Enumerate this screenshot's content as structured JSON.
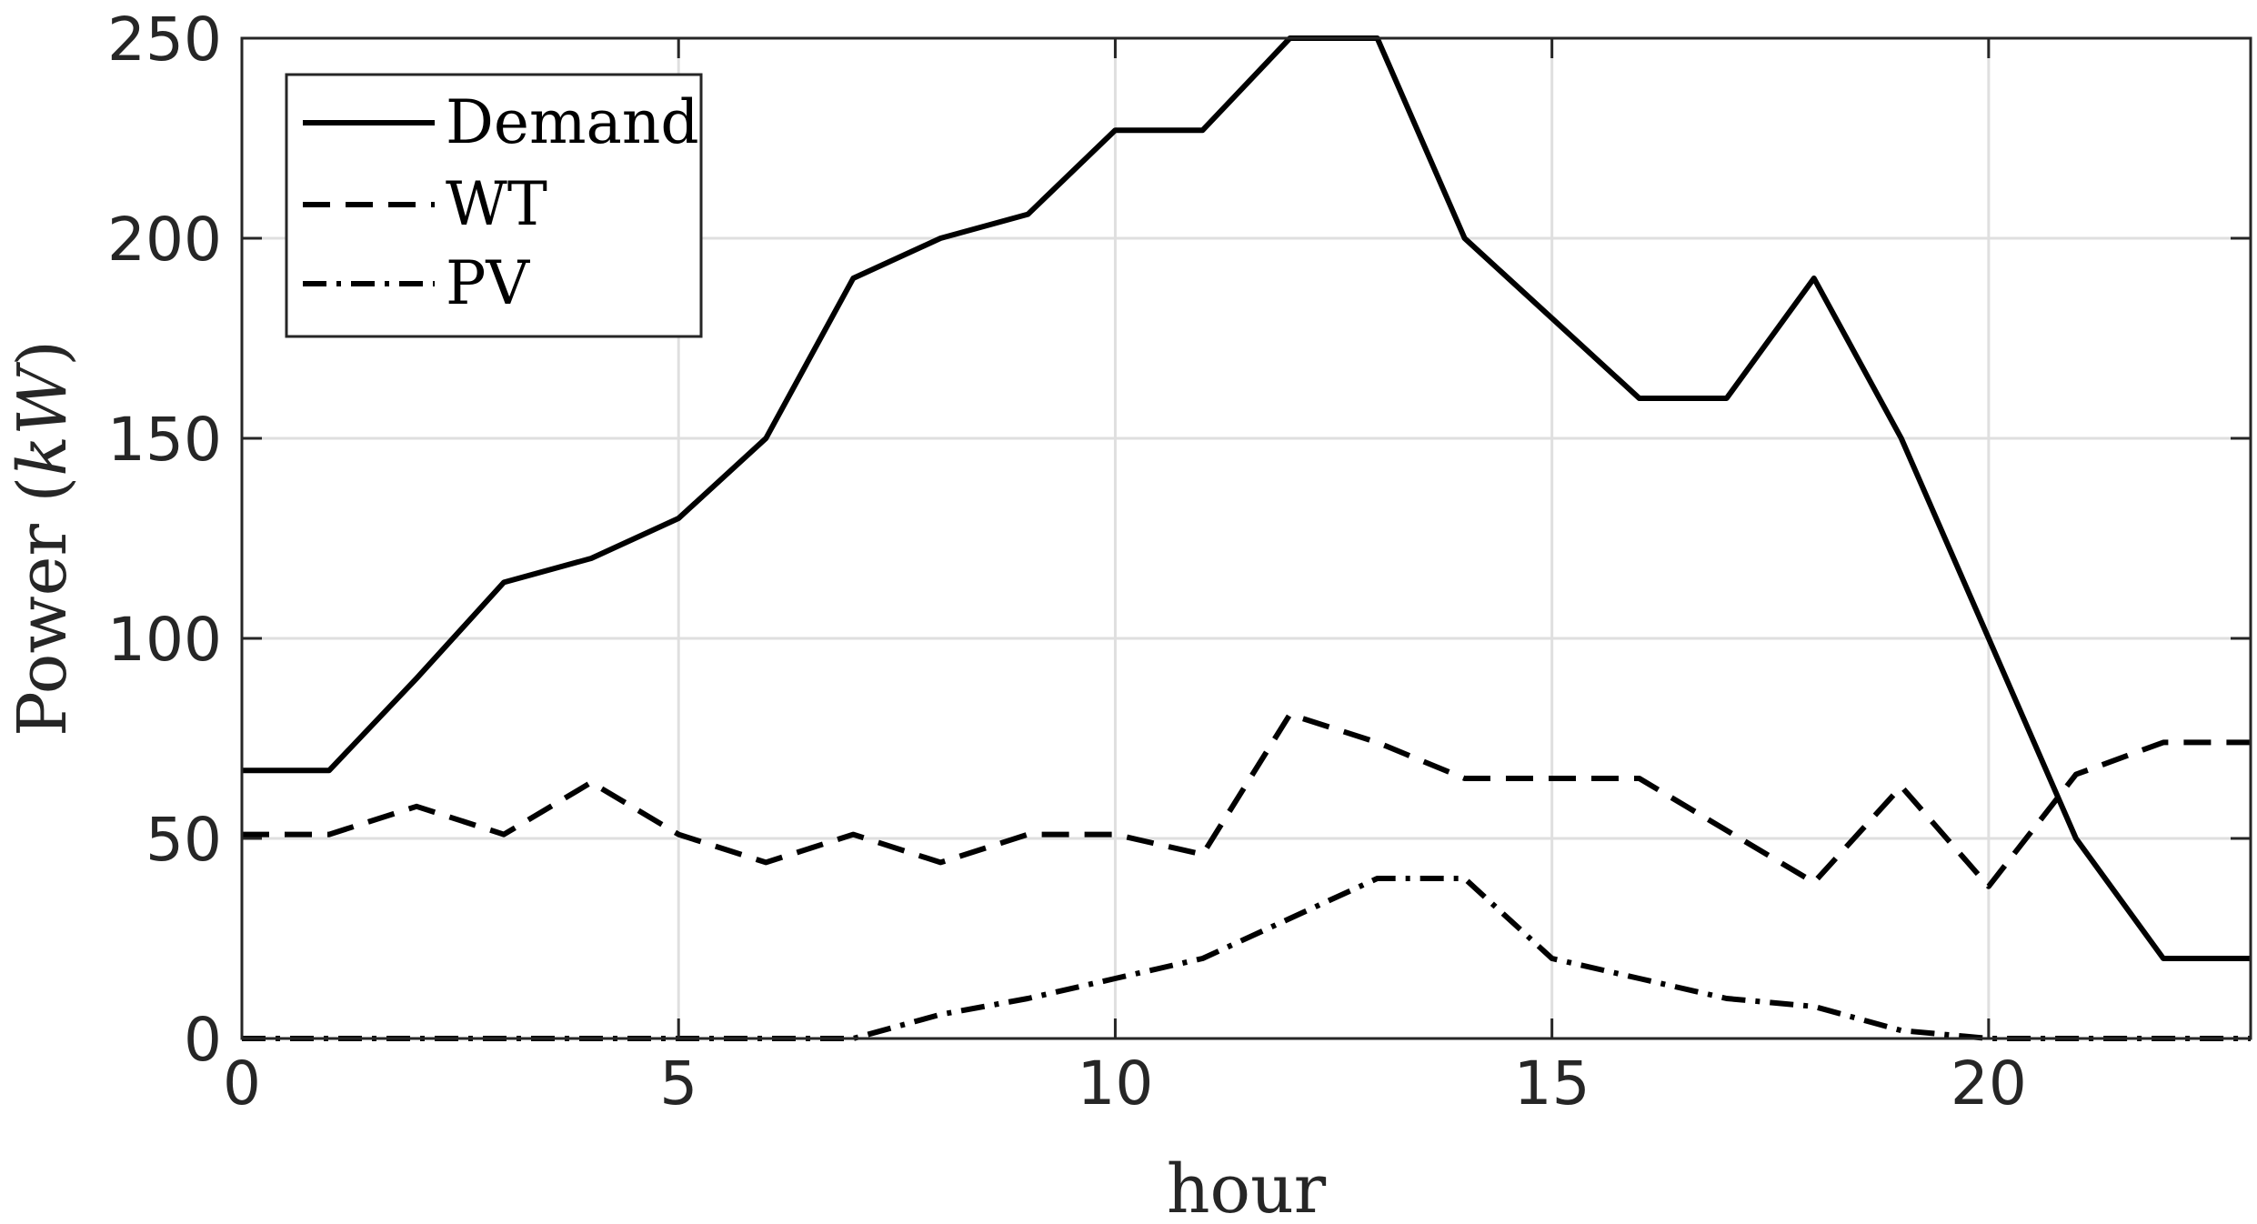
{
  "chart_data": {
    "type": "line",
    "title": "",
    "xlabel": "hour",
    "ylabel": "Power (kW)",
    "ylabel_parts": {
      "prefix": "Power (",
      "unit": "kW",
      "suffix": ")"
    },
    "xlim": [
      0,
      23
    ],
    "ylim": [
      0,
      250
    ],
    "x_ticks": [
      0,
      5,
      10,
      15,
      20
    ],
    "y_ticks": [
      0,
      50,
      100,
      150,
      200,
      250
    ],
    "grid": true,
    "legend_position": "top-left",
    "x": [
      0,
      1,
      2,
      3,
      4,
      5,
      6,
      7,
      8,
      9,
      10,
      11,
      12,
      13,
      14,
      15,
      16,
      17,
      18,
      19,
      20,
      21,
      22,
      23
    ],
    "series": [
      {
        "name": "Demand",
        "style": "solid",
        "color": "#000000",
        "values": [
          67,
          67,
          90,
          114,
          120,
          130,
          150,
          190,
          200,
          206,
          227,
          227,
          250,
          250,
          200,
          180,
          160,
          160,
          190,
          150,
          100,
          50,
          20,
          20
        ]
      },
      {
        "name": "WT",
        "style": "dashed",
        "color": "#000000",
        "values": [
          51,
          51,
          58,
          51,
          64,
          51,
          44,
          51,
          44,
          51,
          51,
          46,
          81,
          74,
          65,
          65,
          65,
          52,
          39,
          63,
          38,
          66,
          74,
          74
        ]
      },
      {
        "name": "PV",
        "style": "dashdot",
        "color": "#000000",
        "values": [
          0,
          0,
          0,
          0,
          0,
          0,
          0,
          0,
          6,
          10,
          15,
          20,
          30,
          40,
          40,
          20,
          15,
          10,
          8,
          2,
          0,
          0,
          0,
          0
        ]
      }
    ]
  }
}
